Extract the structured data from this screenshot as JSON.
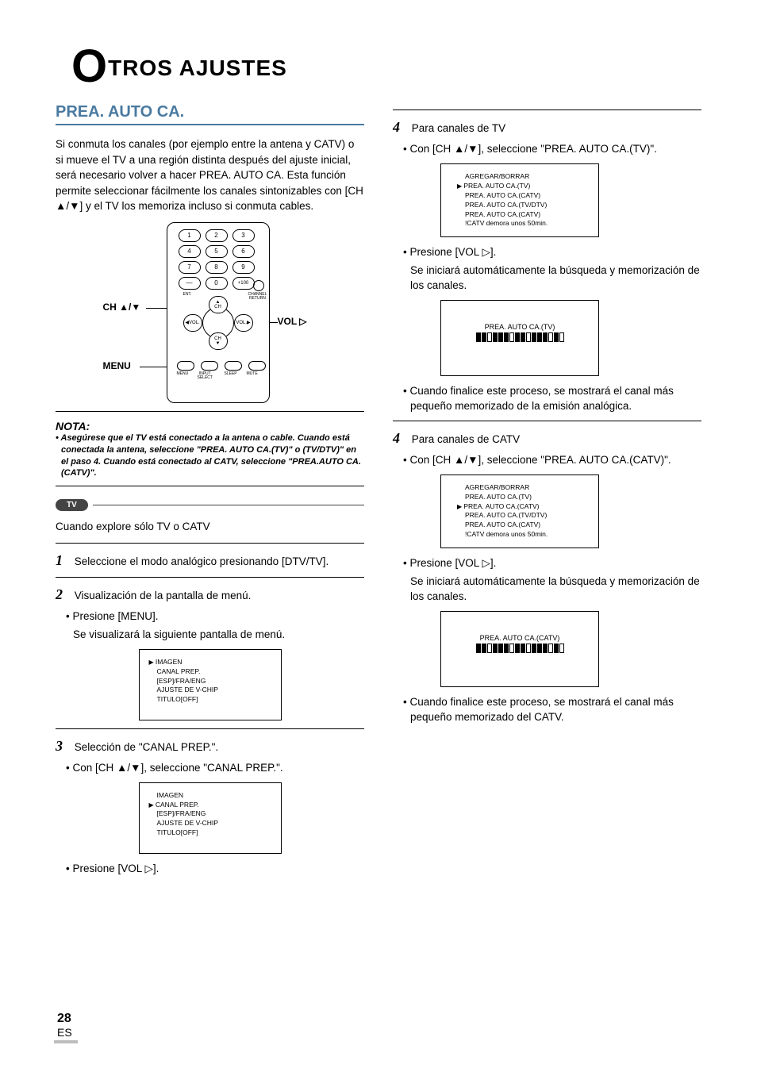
{
  "title_rest": "TROS AJUSTES",
  "section": "PREA. AUTO CA.",
  "intro": "Si conmuta los canales (por ejemplo entre la antena y CATV) o si mueve el TV a una región distinta después del ajuste inicial, será necesario volver a hacer PREA. AUTO CA. Esta función permite seleccionar fácilmente los canales sintonizables con [CH ▲/▼] y el TV los memoriza incluso si conmuta cables.",
  "remote": {
    "ch_label": "CH ▲/▼",
    "menu_label": "MENU",
    "vol_label": "VOL ▷",
    "numbers": [
      "1",
      "2",
      "3",
      "4",
      "5",
      "6",
      "7",
      "8",
      "9",
      "—",
      "0",
      "+100"
    ],
    "ent_label": "ENT.",
    "chret_label": "CHANNEL\nRETURN",
    "dpad_up": "▲\nCH",
    "dpad_down": "CH\n▼",
    "dpad_left": "◀VOL.",
    "dpad_right": "VOL.▶",
    "bottom_labels": [
      "MENU",
      "INPUT\nSELECT",
      "SLEEP",
      "MUTE"
    ]
  },
  "nota_label": "NOTA:",
  "nota_body": "Asegúrese que el TV está conectado a la antena o cable. Cuando está conectada la antena, seleccione \"PREA. AUTO CA.(TV)\" o (TV/DTV)\" en el paso 4. Cuando está conectado al CATV, seleccione \"PREA.AUTO CA.(CATV)\".",
  "tv_pill": "TV",
  "explore_line": "Cuando explore sólo TV o CATV",
  "step1": "Seleccione el modo analógico presionando [DTV/TV].",
  "step2": "Visualización de la pantalla de menú.",
  "step2_b1": "Presione [MENU].",
  "step2_t1": "Se visualizará la siguiente pantalla de menú.",
  "menu_screen": {
    "items": [
      "IMAGEN",
      "CANAL PREP.",
      "[ESP]/FRA/ENG",
      "AJUSTE DE V-CHIP",
      "TITULO[OFF]"
    ],
    "selected": 0
  },
  "step3": "Selección de \"CANAL PREP.\".",
  "step3_b1": "Con [CH ▲/▼], seleccione \"CANAL PREP.\".",
  "menu_screen2": {
    "items": [
      "IMAGEN",
      "CANAL PREP.",
      "[ESP]/FRA/ENG",
      "AJUSTE DE V-CHIP",
      "TITULO[OFF]"
    ],
    "selected": 1
  },
  "step3_b2": "Presione [VOL ▷].",
  "r_step4a": "Para canales de TV",
  "r_step4a_b1": "Con [CH ▲/▼], seleccione \"PREA. AUTO CA.(TV)\".",
  "tv_screen": {
    "items": [
      "AGREGAR/BORRAR",
      "PREA. AUTO CA.(TV)",
      "PREA. AUTO CA.(CATV)",
      "PREA. AUTO CA.(TV/DTV)",
      "PREA. AUTO CA.(CATV)",
      "!CATV demora unos 50min."
    ],
    "selected": 1
  },
  "r_press_vol": "Presione [VOL ▷].",
  "r_search_text": "Se iniciará automáticamente la búsqueda y memorización de los canales.",
  "progress_tv_label": "PREA. AUTO CA.(TV)",
  "r_finish_tv": "Cuando finalice este proceso, se mostrará el canal más pequeño memorizado de la emisión analógica.",
  "r_step4b": "Para canales de CATV",
  "r_step4b_b1": "Con [CH ▲/▼], seleccione \"PREA. AUTO CA.(CATV)\".",
  "catv_screen": {
    "items": [
      "AGREGAR/BORRAR",
      "PREA. AUTO CA.(TV)",
      "PREA. AUTO CA.(CATV)",
      "PREA. AUTO CA.(TV/DTV)",
      "PREA. AUTO CA.(CATV)",
      "!CATV demora unos 50min."
    ],
    "selected": 2
  },
  "progress_catv_label": "PREA. AUTO CA.(CATV)",
  "r_finish_catv": "Cuando finalice este proceso, se mostrará el canal más pequeño memorizado del CATV.",
  "progress_pattern": [
    1,
    1,
    0,
    1,
    1,
    1,
    0,
    1,
    1,
    0,
    1,
    1,
    1,
    0,
    1,
    0
  ],
  "page_number": "28",
  "page_suffix": "ES",
  "colors": {
    "heading": "#4a7aa0",
    "pill_bg": "#444444",
    "page_bar": "#bdbdbd"
  }
}
